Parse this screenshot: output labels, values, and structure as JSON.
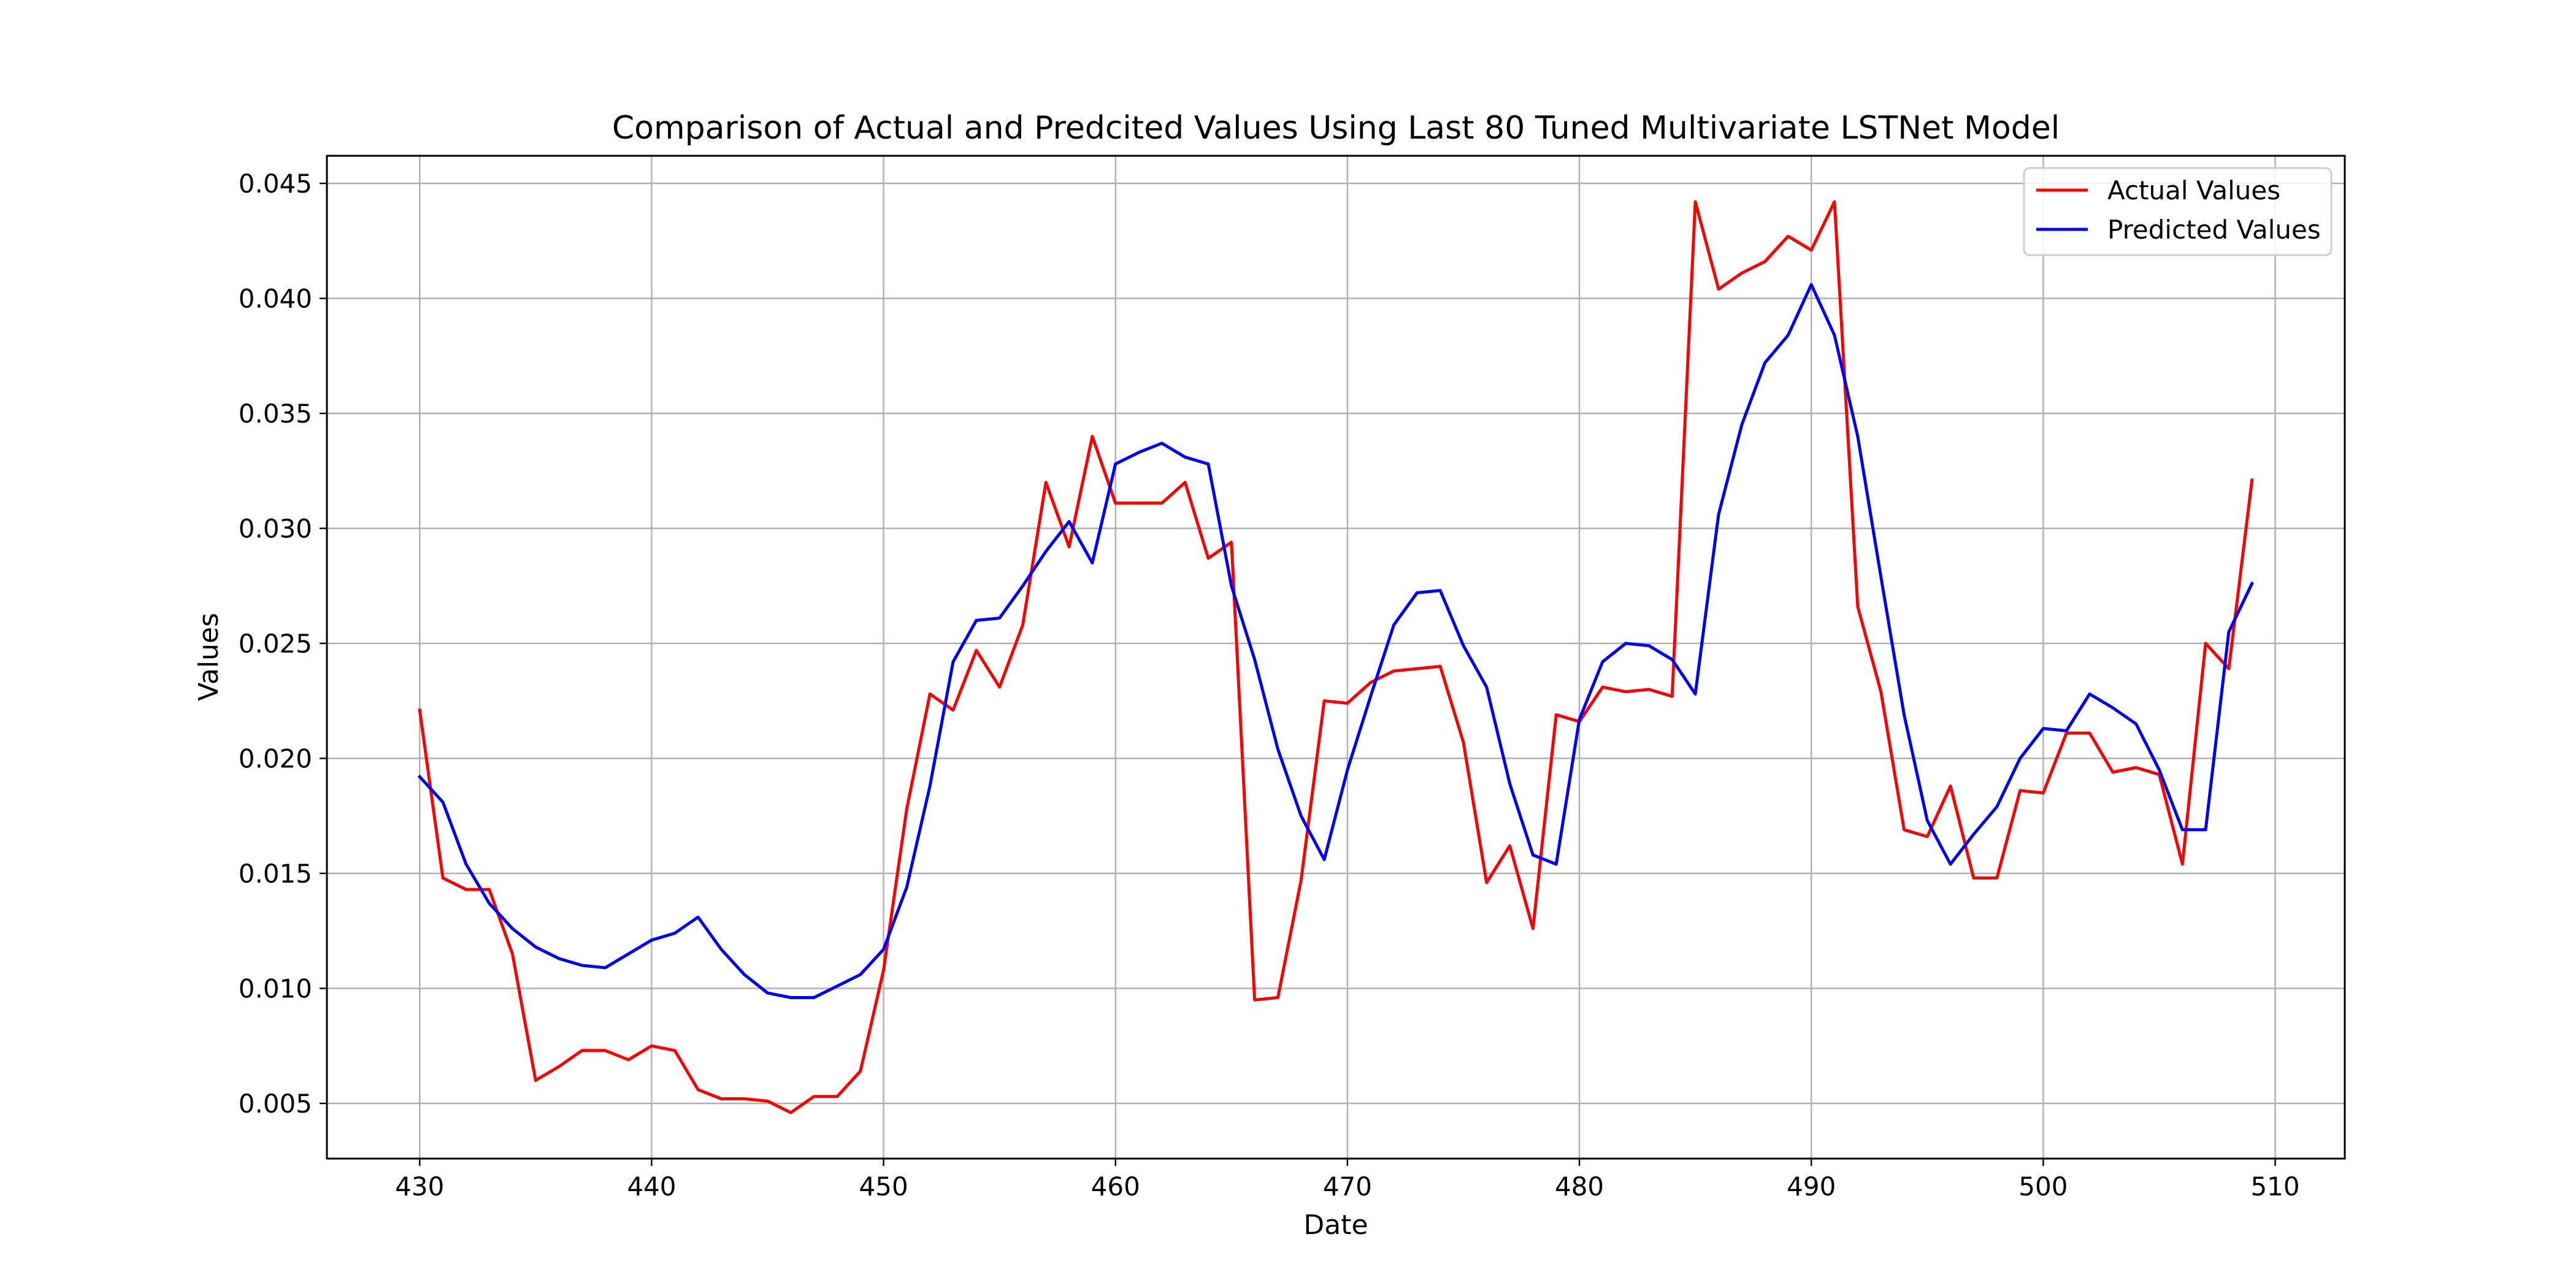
{
  "chart_data": {
    "type": "line",
    "title": "Comparison of Actual and Predcited Values Using Last 80 Tuned Multivariate LSTNet Model",
    "xlabel": "Date",
    "ylabel": "Values",
    "xlim": [
      426,
      513
    ],
    "ylim": [
      0.0026,
      0.0462
    ],
    "x_ticks": [
      430,
      440,
      450,
      460,
      470,
      480,
      490,
      500,
      510
    ],
    "y_ticks": [
      0.005,
      0.01,
      0.015,
      0.02,
      0.025,
      0.03,
      0.035,
      0.04,
      0.045
    ],
    "y_tick_labels": [
      "0.005",
      "0.010",
      "0.015",
      "0.020",
      "0.025",
      "0.030",
      "0.035",
      "0.040",
      "0.045"
    ],
    "grid": true,
    "legend_position": "top-right",
    "x": [
      430,
      431,
      432,
      433,
      434,
      435,
      436,
      437,
      438,
      439,
      440,
      441,
      442,
      443,
      444,
      445,
      446,
      447,
      448,
      449,
      450,
      451,
      452,
      453,
      454,
      455,
      456,
      457,
      458,
      459,
      460,
      461,
      462,
      463,
      464,
      465,
      466,
      467,
      468,
      469,
      470,
      471,
      472,
      473,
      474,
      475,
      476,
      477,
      478,
      479,
      480,
      481,
      482,
      483,
      484,
      485,
      486,
      487,
      488,
      489,
      490,
      491,
      492,
      493,
      494,
      495,
      496,
      497,
      498,
      499,
      500,
      501,
      502,
      503,
      504,
      505,
      506,
      507,
      508,
      509
    ],
    "series": [
      {
        "name": "Actual Values",
        "color": "#ff0000",
        "values": [
          0.0221,
          0.0148,
          0.0143,
          0.0143,
          0.0115,
          0.006,
          0.0066,
          0.0073,
          0.0073,
          0.0069,
          0.0075,
          0.0073,
          0.0056,
          0.0052,
          0.0052,
          0.0051,
          0.0046,
          0.0053,
          0.0053,
          0.0064,
          0.0108,
          0.0178,
          0.0228,
          0.0221,
          0.0247,
          0.0231,
          0.0258,
          0.032,
          0.0292,
          0.034,
          0.0311,
          0.0311,
          0.0311,
          0.032,
          0.0287,
          0.0294,
          0.0095,
          0.0096,
          0.0147,
          0.0225,
          0.0224,
          0.0233,
          0.0238,
          0.0239,
          0.024,
          0.0207,
          0.0146,
          0.0162,
          0.0126,
          0.0219,
          0.0216,
          0.0231,
          0.0229,
          0.023,
          0.0227,
          0.0442,
          0.0404,
          0.0411,
          0.0416,
          0.0427,
          0.0421,
          0.0442,
          0.0266,
          0.0229,
          0.0169,
          0.0166,
          0.0188,
          0.0148,
          0.0148,
          0.0186,
          0.0185,
          0.0211,
          0.0211,
          0.0194,
          0.0196,
          0.0193,
          0.0154,
          0.025,
          0.0239,
          0.0321
        ]
      },
      {
        "name": "Predicted Values",
        "color": "#0000ff",
        "values": [
          0.0192,
          0.0181,
          0.0154,
          0.0137,
          0.0126,
          0.0118,
          0.0113,
          0.011,
          0.0109,
          0.0115,
          0.0121,
          0.0124,
          0.0131,
          0.0117,
          0.0106,
          0.0098,
          0.0096,
          0.0096,
          0.0101,
          0.0106,
          0.0117,
          0.0144,
          0.0188,
          0.0242,
          0.026,
          0.0261,
          0.0275,
          0.029,
          0.0303,
          0.0285,
          0.0328,
          0.0333,
          0.0337,
          0.0331,
          0.0328,
          0.0275,
          0.0243,
          0.0204,
          0.0175,
          0.0156,
          0.0195,
          0.0227,
          0.0258,
          0.0272,
          0.0273,
          0.0249,
          0.0231,
          0.0189,
          0.0158,
          0.0154,
          0.0217,
          0.0242,
          0.025,
          0.0249,
          0.0243,
          0.0228,
          0.0306,
          0.0345,
          0.0372,
          0.0384,
          0.0406,
          0.0384,
          0.034,
          0.0279,
          0.0219,
          0.0173,
          0.0154,
          0.0167,
          0.0179,
          0.02,
          0.0213,
          0.0212,
          0.0228,
          0.0222,
          0.0215,
          0.0195,
          0.0169,
          0.0169,
          0.0255,
          0.0276
        ]
      }
    ]
  }
}
